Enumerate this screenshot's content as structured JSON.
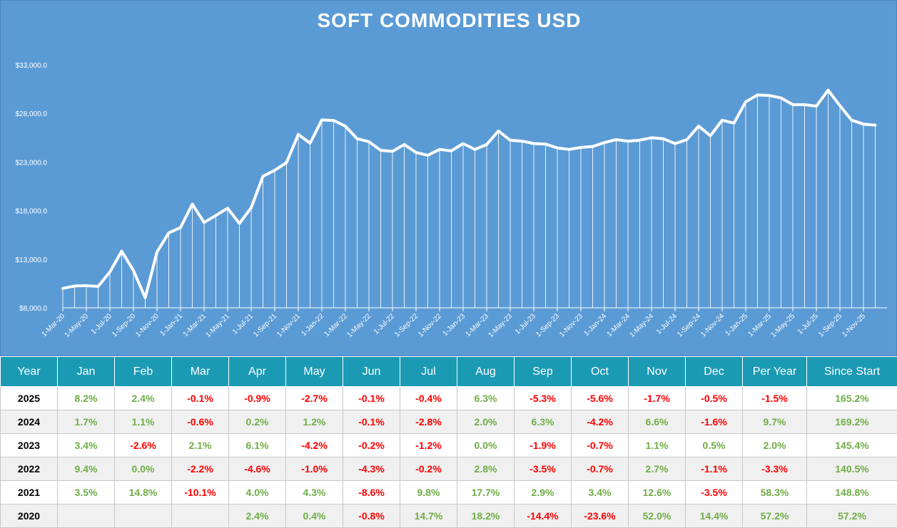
{
  "chart_data": {
    "type": "area",
    "title": "SOFT COMMODITIES USD",
    "xlabel": "",
    "ylabel": "",
    "ylim": [
      8000,
      33000
    ],
    "y_ticks": [
      "$8,000.0",
      "$13,000.0",
      "$18,000.0",
      "$23,000.0",
      "$28,000.0",
      "$33,000.0"
    ],
    "y_tick_values": [
      8000,
      13000,
      18000,
      23000,
      28000,
      33000
    ],
    "x_tick_labels": [
      "1-Mar-20",
      "1-May-20",
      "1-Jul-20",
      "1-Sep-20",
      "1-Nov-20",
      "1-Jan-21",
      "1-Mar-21",
      "1-May-21",
      "1-Jul-21",
      "1-Sep-21",
      "1-Nov-21",
      "1-Jan-22",
      "1-Mar-22",
      "1-May-22",
      "1-Jul-22",
      "1-Sep-22",
      "1-Nov-22",
      "1-Jan-23",
      "1-Mar-23",
      "1-May-23",
      "1-Jul-23",
      "1-Sep-23",
      "1-Nov-23",
      "1-Jan-24",
      "1-Mar-24",
      "1-May-24",
      "1-Jul-24",
      "1-Sep-24",
      "1-Nov-24",
      "1-Jan-25",
      "1-Mar-25",
      "1-May-25",
      "1-Jul-25",
      "1-Sep-25",
      "1-Nov-25"
    ],
    "x": [
      "2020-03",
      "2020-04",
      "2020-05",
      "2020-06",
      "2020-07",
      "2020-08",
      "2020-09",
      "2020-10",
      "2020-11",
      "2020-12",
      "2021-01",
      "2021-02",
      "2021-03",
      "2021-04",
      "2021-05",
      "2021-06",
      "2021-07",
      "2021-08",
      "2021-09",
      "2021-10",
      "2021-11",
      "2021-12",
      "2022-01",
      "2022-02",
      "2022-03",
      "2022-04",
      "2022-05",
      "2022-06",
      "2022-07",
      "2022-08",
      "2022-09",
      "2022-10",
      "2022-11",
      "2022-12",
      "2023-01",
      "2023-02",
      "2023-03",
      "2023-04",
      "2023-05",
      "2023-06",
      "2023-07",
      "2023-08",
      "2023-09",
      "2023-10",
      "2023-11",
      "2023-12",
      "2024-01",
      "2024-02",
      "2024-03",
      "2024-04",
      "2024-05",
      "2024-06",
      "2024-07",
      "2024-08",
      "2024-09",
      "2024-10",
      "2024-11",
      "2024-12",
      "2025-01",
      "2025-02",
      "2025-03",
      "2025-04",
      "2025-05",
      "2025-06",
      "2025-07",
      "2025-08",
      "2025-09",
      "2025-10",
      "2025-11",
      "2025-12"
    ],
    "values": [
      10000,
      10240,
      10281,
      10199,
      11698,
      13826,
      11836,
      9042,
      13744,
      15716,
      16266,
      18677,
      16780,
      17498,
      18248,
      16677,
      18299,
      21535,
      22159,
      22938,
      25846,
      24939,
      27330,
      27276,
      26689,
      25400,
      25100,
      24200,
      24100,
      24800,
      23980,
      23700,
      24300,
      24150,
      24900,
      24300,
      24800,
      26200,
      25240,
      25150,
      24900,
      24850,
      24450,
      24300,
      24500,
      24600,
      25000,
      25300,
      25150,
      25250,
      25500,
      25400,
      24900,
      25300,
      26700,
      25700,
      27300,
      27000,
      29200,
      29900,
      29850,
      29600,
      28900,
      28900,
      28750,
      30400,
      28800,
      27300,
      26900,
      26800
    ]
  },
  "table": {
    "headers": [
      "Year",
      "Jan",
      "Feb",
      "Mar",
      "Apr",
      "May",
      "Jun",
      "Jul",
      "Aug",
      "Sep",
      "Oct",
      "Nov",
      "Dec",
      "Per Year",
      "Since Start"
    ],
    "rows": [
      [
        "2025",
        "8.2%",
        "2.4%",
        "-0.1%",
        "-0.9%",
        "-2.7%",
        "-0.1%",
        "-0.4%",
        "6.3%",
        "-5.3%",
        "-5.6%",
        "-1.7%",
        "-0.5%",
        "-1.5%",
        "165.2%"
      ],
      [
        "2024",
        "1.7%",
        "1.1%",
        "-0.6%",
        "0.2%",
        "1.2%",
        "-0.1%",
        "-2.8%",
        "2.0%",
        "6.3%",
        "-4.2%",
        "6.6%",
        "-1.6%",
        "9.7%",
        "169.2%"
      ],
      [
        "2023",
        "3.4%",
        "-2.6%",
        "2.1%",
        "6.1%",
        "-4.2%",
        "-0.2%",
        "-1.2%",
        "0.0%",
        "-1.9%",
        "-0.7%",
        "1.1%",
        "0.5%",
        "2.0%",
        "145.4%"
      ],
      [
        "2022",
        "9.4%",
        "0.0%",
        "-2.2%",
        "-4.6%",
        "-1.0%",
        "-4.3%",
        "-0.2%",
        "2.8%",
        "-3.5%",
        "-0.7%",
        "2.7%",
        "-1.1%",
        "-3.3%",
        "140.5%"
      ],
      [
        "2021",
        "3.5%",
        "14.8%",
        "-10.1%",
        "4.0%",
        "4.3%",
        "-8.6%",
        "9.8%",
        "17.7%",
        "2.9%",
        "3.4%",
        "12.6%",
        "-3.5%",
        "58.3%",
        "148.8%"
      ],
      [
        "2020",
        "",
        "",
        "",
        "2.4%",
        "0.4%",
        "-0.8%",
        "14.7%",
        "18.2%",
        "-14.4%",
        "-23.6%",
        "52.0%",
        "14.4%",
        "57.2%",
        "57.2%"
      ]
    ]
  },
  "colors": {
    "chart_background": "#5b9bd5",
    "line": "#ffffff",
    "header_background": "#1b9ab4",
    "positive": "#70ad47",
    "negative": "#ff0000"
  }
}
